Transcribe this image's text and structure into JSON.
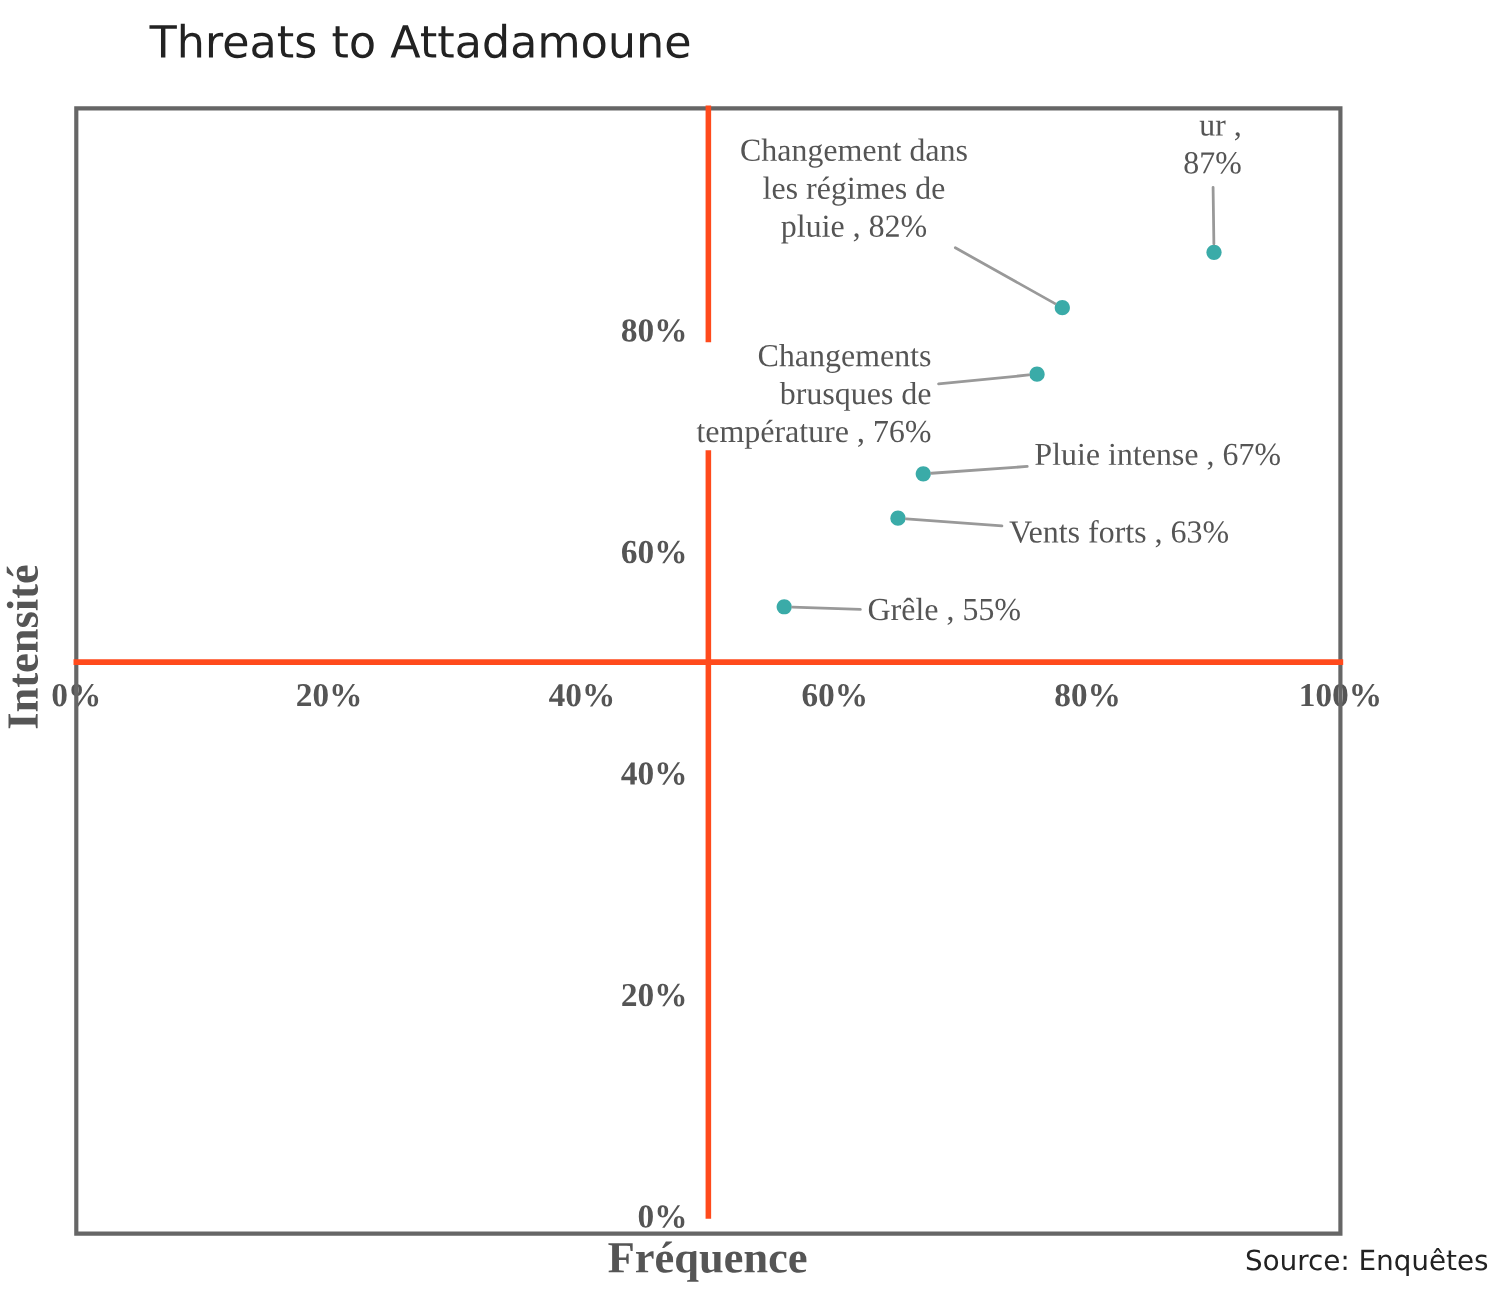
{
  "chart_data": {
    "type": "scatter",
    "title": "Threats to Attadamoune",
    "xlabel": "Fréquence",
    "ylabel": "Intensité",
    "x": [
      56,
      65,
      67,
      76,
      78,
      90
    ],
    "series": [
      {
        "color": "#3aaba8",
        "values": [
          55,
          63,
          67,
          76,
          82,
          87
        ],
        "value_labels": [
          "Grêle , 55%",
          "Vents forts , 63%",
          "Pluie intense , 67%",
          "Changements\nbrusques de\ntempérature , 76%",
          "Changement dans\nles régimes de\npluie , 82%",
          "ur ,\n87%"
        ]
      }
    ],
    "xlim": [
      0,
      100
    ],
    "ylim": [
      0,
      100
    ],
    "xticks": [
      {
        "value": 0,
        "label": "0%"
      },
      {
        "value": 20,
        "label": "20%"
      },
      {
        "value": 40,
        "label": "40%"
      },
      {
        "value": 60,
        "label": "60%"
      },
      {
        "value": 80,
        "label": "80%"
      },
      {
        "value": 100,
        "label": "100%"
      }
    ],
    "yticks": [
      {
        "value": 0,
        "label": "0%"
      },
      {
        "value": 20,
        "label": "20%"
      },
      {
        "value": 40,
        "label": "40%"
      },
      {
        "value": 60,
        "label": "60%"
      },
      {
        "value": 80,
        "label": "80%"
      }
    ],
    "marker": "circle",
    "grid": false,
    "legend": false,
    "annotations": [
      "Source: Enquêtes"
    ]
  }
}
